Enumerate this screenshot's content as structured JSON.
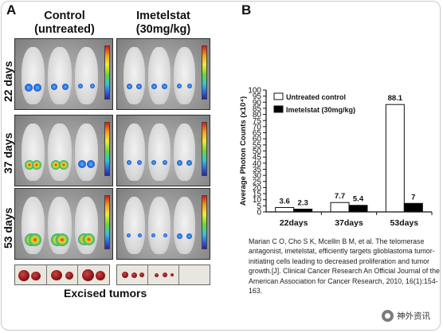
{
  "figure": {
    "panel_a_label": "A",
    "panel_b_label": "B",
    "column_control": "Control\n(untreated)",
    "column_control_line1": "Control",
    "column_control_line2": "(untreated)",
    "column_treated_line1": "Imetelstat",
    "column_treated_line2": "(30mg/kg)",
    "row_labels": [
      "22 days",
      "37 days",
      "53 days"
    ],
    "excised_label": "Excised tumors"
  },
  "chart_data": {
    "type": "bar",
    "categories": [
      "22days",
      "37days",
      "53days"
    ],
    "series": [
      {
        "name": "Untreated control",
        "color": "#ffffff",
        "values": [
          3.6,
          7.7,
          88.1
        ],
        "labels": [
          "3.6",
          "7.7",
          "88.1"
        ]
      },
      {
        "name": "Imetelstat (30mg/kg)",
        "color": "#000000",
        "values": [
          2.3,
          5.4,
          7
        ],
        "labels": [
          "2.3",
          "5.4",
          "7"
        ]
      }
    ],
    "ylabel": "Average Photon Counts (x10⁴)",
    "ylim": [
      0,
      100
    ],
    "yticks": [
      0,
      5,
      10,
      15,
      20,
      25,
      30,
      35,
      40,
      45,
      50,
      55,
      60,
      65,
      70,
      75,
      80,
      85,
      90,
      95,
      100
    ],
    "legend_position": "top-left",
    "grid": false
  },
  "citation": "Marian C O, Cho S K, Mcellin B M, et al. The telomerase antagonist, imetelstat, efficiently targets glioblastoma tumor-initiating cells leading to decreased proliferation and tumor growth.[J]. Clinical Cancer Research An Official Journal of the American Association for Cancer Research, 2010, 16(1):154-163.",
  "watermark": {
    "icon": "wechat-account-icon",
    "text": "神外资讯"
  }
}
